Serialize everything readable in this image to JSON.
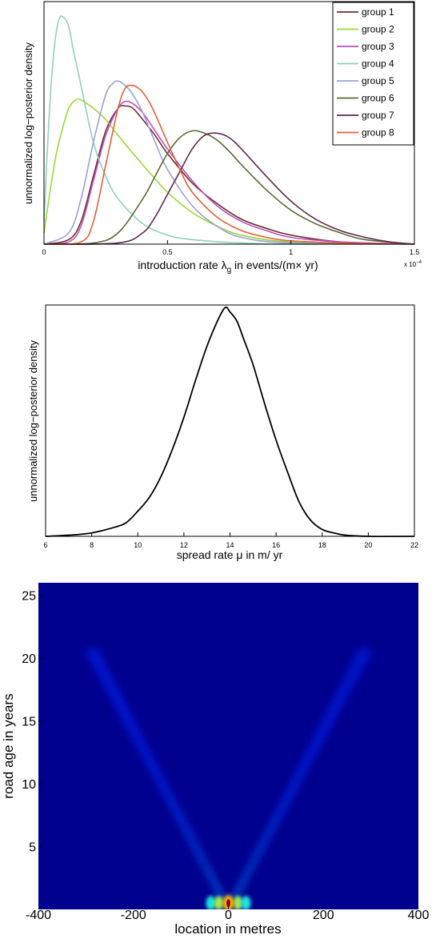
{
  "chart_data": [
    {
      "type": "line",
      "xlabel": "introduction rate λ",
      "xlabel_sub": "g",
      "xlabel_rest": " in events/(m× yr)",
      "ylabel": "unnormalized log−posterior density",
      "x_multiplier": "x 10",
      "x_multiplier_exp": "−4",
      "xlim": [
        0,
        1.5
      ],
      "ylim": [
        0,
        1
      ],
      "xticks": [
        0,
        0.5,
        1,
        1.5
      ],
      "xtick_labels": [
        "0",
        "0.5",
        "1",
        "1.5"
      ],
      "legend_position": "top-right",
      "grid": false,
      "series": [
        {
          "name": "group 1",
          "color": "#6b2f2f",
          "x": [
            0,
            0.1,
            0.15,
            0.2,
            0.25,
            0.3,
            0.33,
            0.36,
            0.4,
            0.45,
            0.5,
            0.6,
            0.7,
            0.8,
            0.9,
            1.0,
            1.2,
            1.5
          ],
          "y": [
            0,
            0.02,
            0.1,
            0.3,
            0.5,
            0.6,
            0.61,
            0.6,
            0.55,
            0.48,
            0.4,
            0.27,
            0.18,
            0.11,
            0.07,
            0.04,
            0.01,
            0
          ]
        },
        {
          "name": "group 2",
          "color": "#9ed63a",
          "x": [
            0,
            0.02,
            0.05,
            0.08,
            0.1,
            0.12,
            0.14,
            0.16,
            0.2,
            0.25,
            0.3,
            0.4,
            0.5,
            0.6,
            0.7,
            0.8,
            1.0,
            1.5
          ],
          "y": [
            0.05,
            0.2,
            0.4,
            0.53,
            0.6,
            0.63,
            0.64,
            0.63,
            0.6,
            0.55,
            0.48,
            0.35,
            0.23,
            0.14,
            0.08,
            0.04,
            0.01,
            0
          ]
        },
        {
          "name": "group 3",
          "color": "#c04dc0",
          "x": [
            0,
            0.1,
            0.15,
            0.2,
            0.25,
            0.3,
            0.33,
            0.36,
            0.4,
            0.45,
            0.5,
            0.6,
            0.7,
            0.8,
            0.9,
            1.0,
            1.2,
            1.5
          ],
          "y": [
            0,
            0.01,
            0.08,
            0.28,
            0.48,
            0.6,
            0.63,
            0.62,
            0.58,
            0.5,
            0.42,
            0.28,
            0.17,
            0.1,
            0.06,
            0.03,
            0.01,
            0
          ]
        },
        {
          "name": "group 4",
          "color": "#8fd1b8",
          "x": [
            0,
            0.02,
            0.04,
            0.06,
            0.08,
            0.1,
            0.12,
            0.15,
            0.2,
            0.25,
            0.3,
            0.4,
            0.5,
            0.6,
            0.8,
            1.0,
            1.5
          ],
          "y": [
            0.1,
            0.55,
            0.85,
            0.99,
            1.0,
            0.96,
            0.85,
            0.7,
            0.45,
            0.3,
            0.2,
            0.09,
            0.04,
            0.02,
            0.005,
            0,
            0
          ]
        },
        {
          "name": "group 5",
          "color": "#9aa0d8",
          "x": [
            0,
            0.1,
            0.15,
            0.2,
            0.25,
            0.28,
            0.3,
            0.33,
            0.36,
            0.4,
            0.45,
            0.5,
            0.6,
            0.7,
            0.8,
            1.0,
            1.5
          ],
          "y": [
            0,
            0.05,
            0.2,
            0.45,
            0.66,
            0.71,
            0.72,
            0.7,
            0.66,
            0.58,
            0.45,
            0.33,
            0.17,
            0.08,
            0.03,
            0.005,
            0
          ]
        },
        {
          "name": "group 6",
          "color": "#5a6b34",
          "x": [
            0,
            0.2,
            0.3,
            0.4,
            0.45,
            0.5,
            0.55,
            0.6,
            0.65,
            0.7,
            0.75,
            0.8,
            0.9,
            1.0,
            1.1,
            1.2,
            1.3,
            1.5
          ],
          "y": [
            0,
            0.005,
            0.05,
            0.2,
            0.3,
            0.4,
            0.47,
            0.5,
            0.49,
            0.46,
            0.41,
            0.35,
            0.24,
            0.15,
            0.09,
            0.05,
            0.02,
            0
          ]
        },
        {
          "name": "group 7",
          "color": "#5e2a50",
          "x": [
            0,
            0.3,
            0.4,
            0.45,
            0.5,
            0.55,
            0.6,
            0.65,
            0.7,
            0.75,
            0.8,
            0.9,
            1.0,
            1.1,
            1.2,
            1.3,
            1.4,
            1.5
          ],
          "y": [
            0,
            0.005,
            0.05,
            0.12,
            0.22,
            0.32,
            0.42,
            0.48,
            0.49,
            0.47,
            0.42,
            0.3,
            0.19,
            0.11,
            0.06,
            0.03,
            0.01,
            0
          ]
        },
        {
          "name": "group 8",
          "color": "#e0603a",
          "x": [
            0,
            0.15,
            0.2,
            0.25,
            0.3,
            0.33,
            0.36,
            0.38,
            0.4,
            0.43,
            0.46,
            0.5,
            0.55,
            0.6,
            0.7,
            0.8,
            0.9,
            1.0,
            1.2,
            1.5
          ],
          "y": [
            0,
            0.01,
            0.1,
            0.35,
            0.6,
            0.69,
            0.7,
            0.69,
            0.67,
            0.62,
            0.55,
            0.45,
            0.33,
            0.23,
            0.12,
            0.06,
            0.03,
            0.015,
            0.005,
            0
          ]
        }
      ]
    },
    {
      "type": "line",
      "xlabel": "spread rate μ in m/ yr",
      "ylabel": "unnormalized log−posterior density",
      "xlim": [
        6,
        22
      ],
      "ylim": [
        0,
        1
      ],
      "xticks": [
        6,
        8,
        10,
        12,
        14,
        16,
        18,
        20,
        22
      ],
      "xtick_labels": [
        "6",
        "8",
        "10",
        "12",
        "14",
        "16",
        "18",
        "20",
        "22"
      ],
      "grid": false,
      "series": [
        {
          "color": "#000000",
          "x": [
            6,
            7,
            8,
            9,
            9.5,
            10,
            10.5,
            11,
            11.5,
            12,
            12.5,
            13,
            13.5,
            13.8,
            14,
            14.3,
            14.6,
            15,
            15.5,
            16,
            16.5,
            17,
            17.5,
            18,
            18.5,
            19,
            20,
            22
          ],
          "y": [
            0,
            0.005,
            0.015,
            0.04,
            0.06,
            0.11,
            0.17,
            0.26,
            0.38,
            0.52,
            0.68,
            0.83,
            0.95,
            1.0,
            0.98,
            0.94,
            0.86,
            0.75,
            0.58,
            0.42,
            0.28,
            0.15,
            0.07,
            0.03,
            0.015,
            0.005,
            0,
            0
          ]
        }
      ]
    },
    {
      "type": "heatmap",
      "xlabel": "location in metres",
      "ylabel": "road age in years",
      "xlim": [
        -400,
        400
      ],
      "ylim": [
        0,
        26
      ],
      "xticks": [
        -400,
        -200,
        0,
        200,
        400
      ],
      "xtick_labels": [
        "-400",
        "-200",
        "0",
        "200",
        "400"
      ],
      "yticks": [
        5,
        10,
        15,
        20,
        25
      ],
      "ytick_labels": [
        "5",
        "10",
        "15",
        "20",
        "25"
      ],
      "colormap": "jet",
      "background_color": "#00008f",
      "spread_rate": 14,
      "peak": {
        "x": 0,
        "y": 0.5
      }
    }
  ]
}
